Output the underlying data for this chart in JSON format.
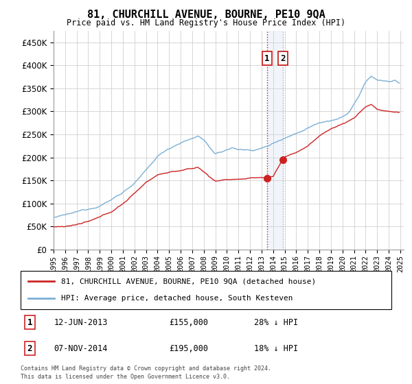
{
  "title": "81, CHURCHILL AVENUE, BOURNE, PE10 9QA",
  "subtitle": "Price paid vs. HM Land Registry's House Price Index (HPI)",
  "legend_line1": "81, CHURCHILL AVENUE, BOURNE, PE10 9QA (detached house)",
  "legend_line2": "HPI: Average price, detached house, South Kesteven",
  "transaction1_date": "12-JUN-2013",
  "transaction1_price": "£155,000",
  "transaction1_hpi": "28% ↓ HPI",
  "transaction2_date": "07-NOV-2014",
  "transaction2_price": "£195,000",
  "transaction2_hpi": "18% ↓ HPI",
  "footnote1": "Contains HM Land Registry data © Crown copyright and database right 2024.",
  "footnote2": "This data is licensed under the Open Government Licence v3.0.",
  "hpi_color": "#7bafd4",
  "price_color": "#cc2222",
  "vline1_color": "#cc2222",
  "vline2_color": "#aaaacc",
  "span_color": "#c8d8ee",
  "ylim": [
    0,
    475000
  ],
  "yticks": [
    0,
    50000,
    100000,
    150000,
    200000,
    250000,
    300000,
    350000,
    400000,
    450000
  ],
  "figsize": [
    6.0,
    5.6
  ],
  "dpi": 100,
  "t1_year": 2013.46,
  "t1_price": 155000,
  "t2_year": 2014.84,
  "t2_price": 195000,
  "hpi_waypoints_x": [
    1995,
    1996,
    1997,
    1998,
    1999,
    2000,
    2001,
    2002,
    2003,
    2004,
    2005,
    2006,
    2007,
    2007.5,
    2008,
    2009,
    2009.5,
    2010,
    2010.5,
    2011,
    2012,
    2013,
    2013.5,
    2014,
    2014.5,
    2015,
    2016,
    2017,
    2018,
    2019,
    2020,
    2020.5,
    2021,
    2021.5,
    2022,
    2022.5,
    2023,
    2023.5,
    2024,
    2024.5,
    2025
  ],
  "hpi_waypoints_y": [
    70000,
    73000,
    78000,
    85000,
    95000,
    108000,
    125000,
    145000,
    170000,
    200000,
    218000,
    232000,
    240000,
    245000,
    238000,
    205000,
    208000,
    215000,
    218000,
    215000,
    213000,
    218000,
    222000,
    228000,
    235000,
    242000,
    252000,
    265000,
    278000,
    285000,
    292000,
    300000,
    320000,
    340000,
    365000,
    378000,
    370000,
    368000,
    365000,
    368000,
    360000
  ],
  "price_waypoints_x": [
    1995,
    1996,
    1997,
    1998,
    1999,
    2000,
    2001,
    2002,
    2003,
    2004,
    2005,
    2006,
    2007,
    2007.5,
    2008,
    2009,
    2009.5,
    2010,
    2011,
    2012,
    2013,
    2013.46,
    2014,
    2014.84,
    2015,
    2016,
    2017,
    2018,
    2019,
    2020,
    2021,
    2022,
    2022.5,
    2023,
    2023.5,
    2024,
    2024.5,
    2025
  ],
  "price_waypoints_y": [
    49000,
    51000,
    55000,
    60000,
    68000,
    80000,
    98000,
    120000,
    145000,
    162000,
    168000,
    172000,
    175000,
    178000,
    168000,
    148000,
    150000,
    152000,
    153000,
    153000,
    155000,
    155000,
    158000,
    195000,
    200000,
    210000,
    225000,
    245000,
    262000,
    272000,
    285000,
    310000,
    315000,
    305000,
    302000,
    300000,
    298000,
    298000
  ]
}
